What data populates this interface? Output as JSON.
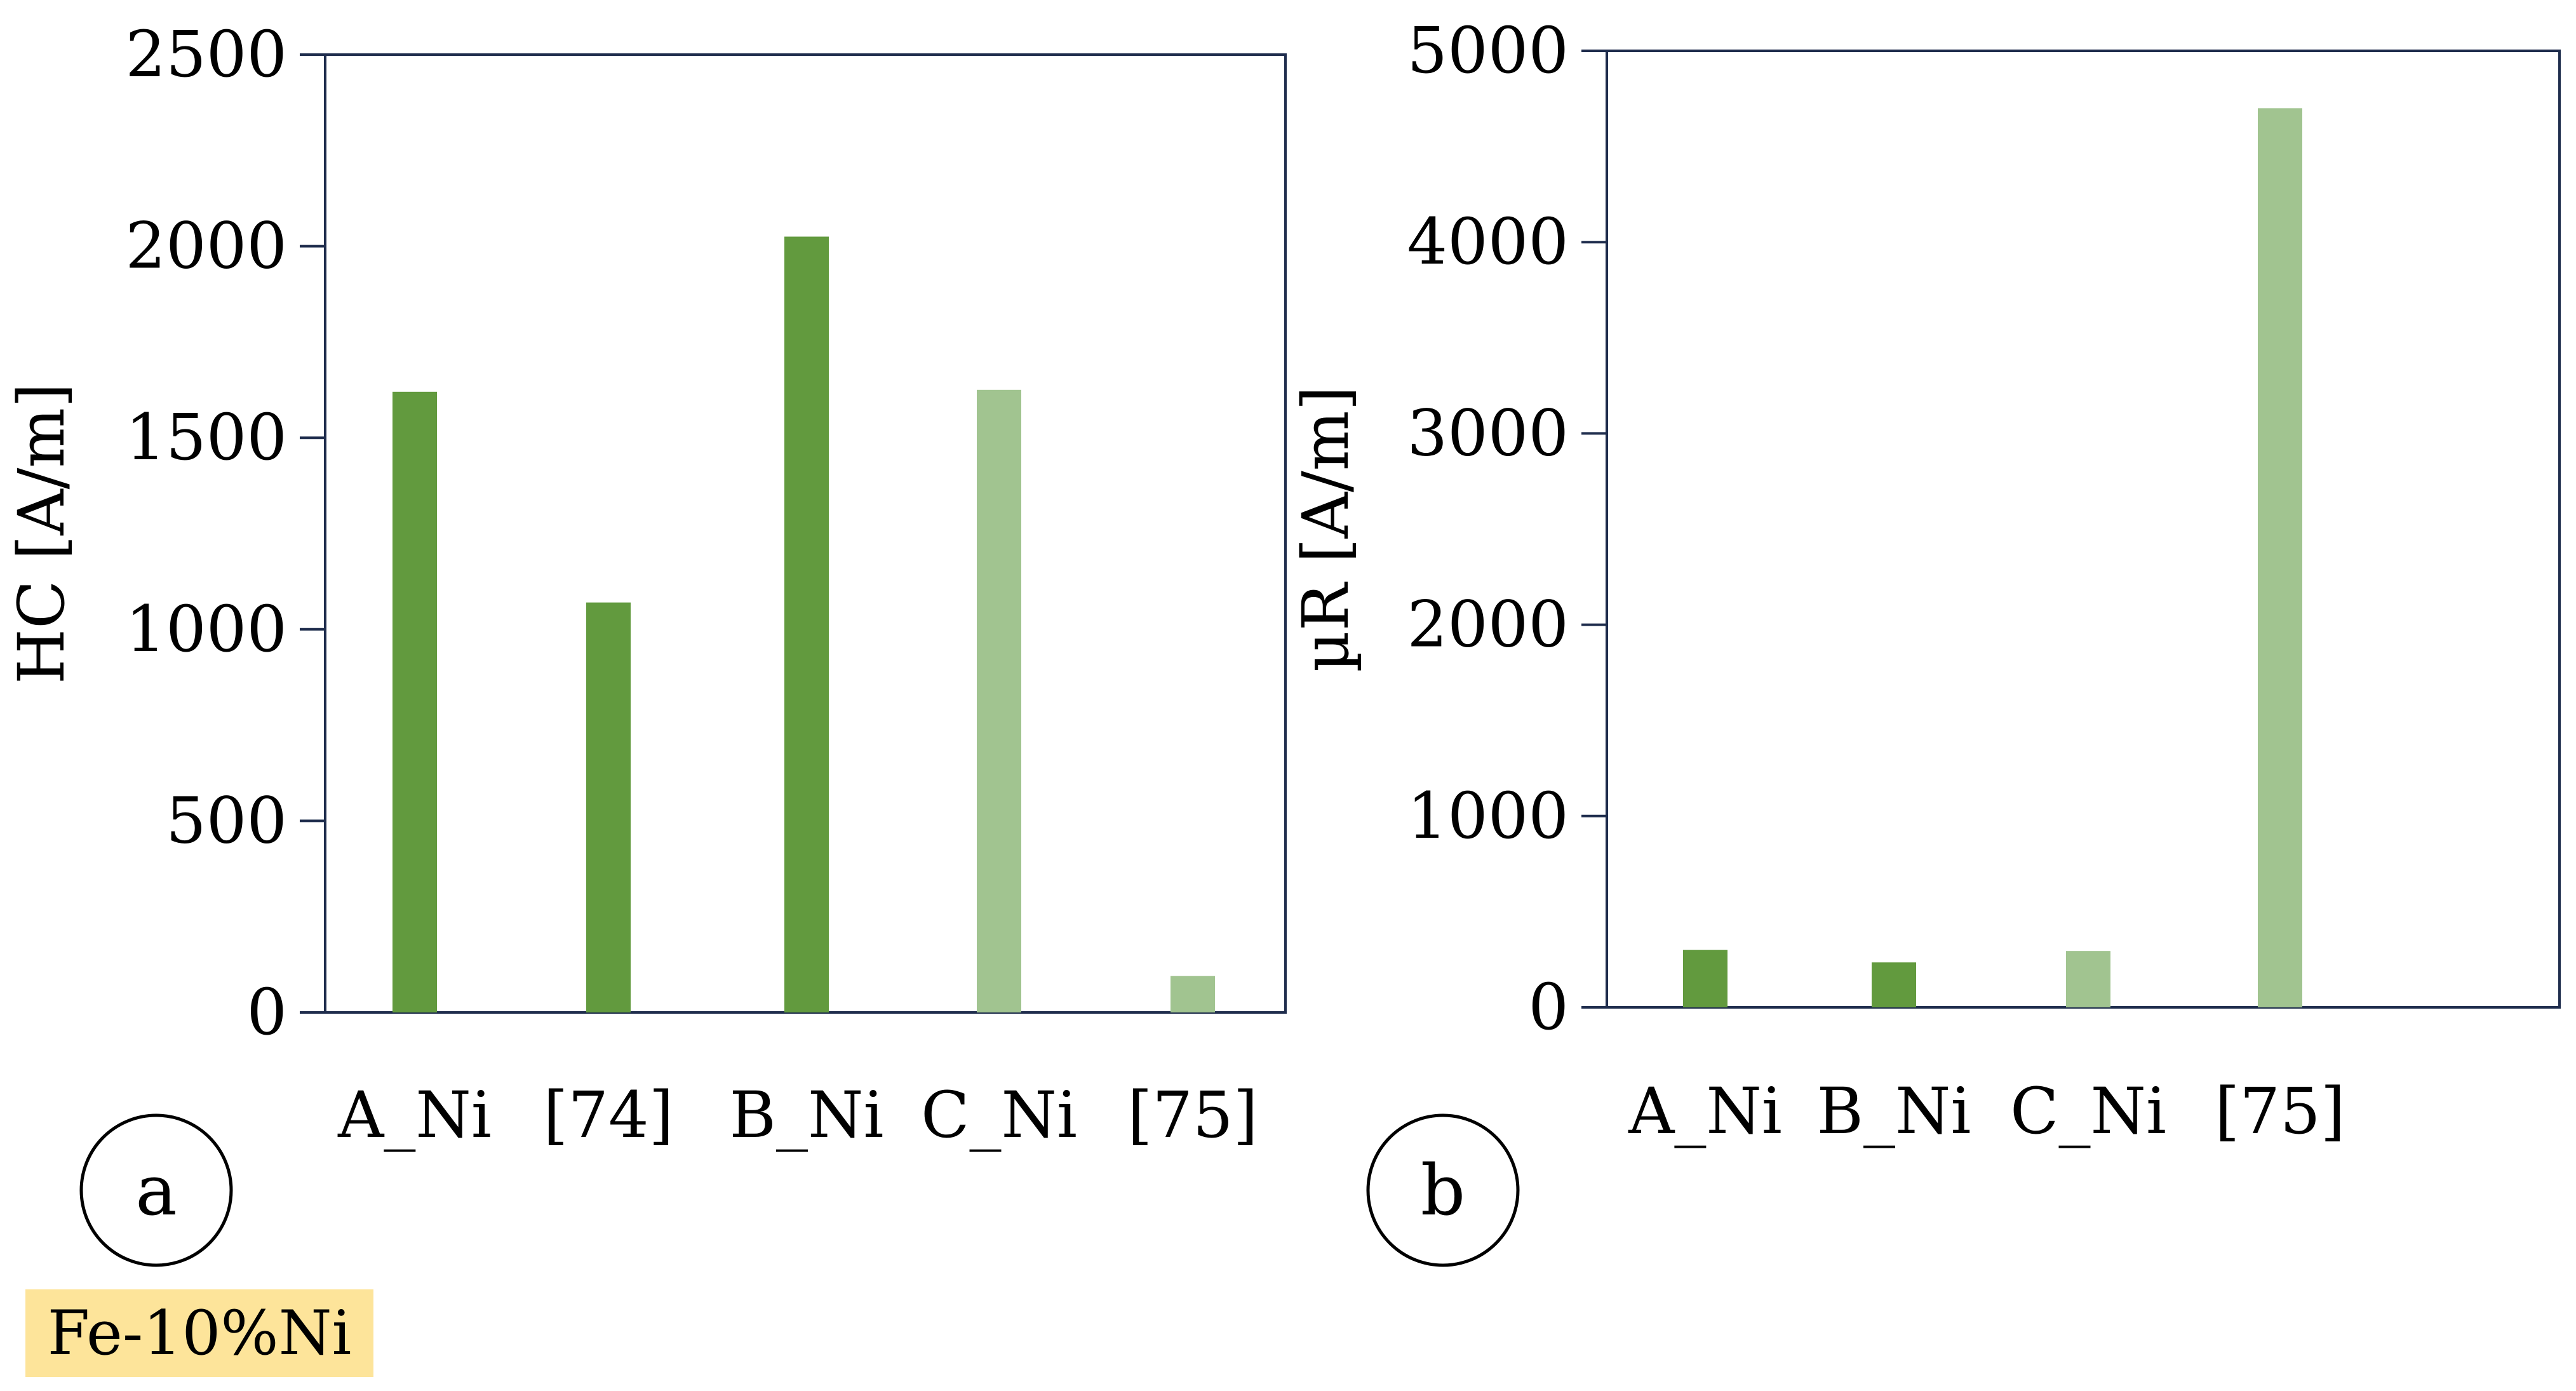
{
  "colors": {
    "dark_green": "#629a3e",
    "light_green": "#a1c490",
    "axis": "#1f2d4d",
    "note_bg": "#fde49a"
  },
  "note_label": "Fe-10%Ni",
  "chart_data": [
    {
      "type": "bar",
      "panel_label": "a",
      "ylabel": "HC [A/m]",
      "ylim": [
        0,
        2500
      ],
      "yticks": [
        0,
        500,
        1000,
        1500,
        2000,
        2500
      ],
      "categories": [
        "A_Ni",
        "[74]",
        "B_Ni",
        "C_Ni",
        "[75]"
      ],
      "values": [
        1620,
        1070,
        2025,
        1625,
        95
      ],
      "bar_colors": [
        "dark_green",
        "dark_green",
        "dark_green",
        "light_green",
        "light_green"
      ],
      "grid": false,
      "legend": "none"
    },
    {
      "type": "bar",
      "panel_label": "b",
      "ylabel": "µR [A/m]",
      "ylim": [
        0,
        5000
      ],
      "yticks": [
        0,
        1000,
        2000,
        3000,
        4000,
        5000
      ],
      "categories": [
        "A_Ni",
        "B_Ni",
        "C_Ni",
        "[75]"
      ],
      "values": [
        300,
        235,
        295,
        4700
      ],
      "bar_colors": [
        "dark_green",
        "dark_green",
        "light_green",
        "light_green"
      ],
      "grid": false,
      "legend": "none"
    }
  ]
}
